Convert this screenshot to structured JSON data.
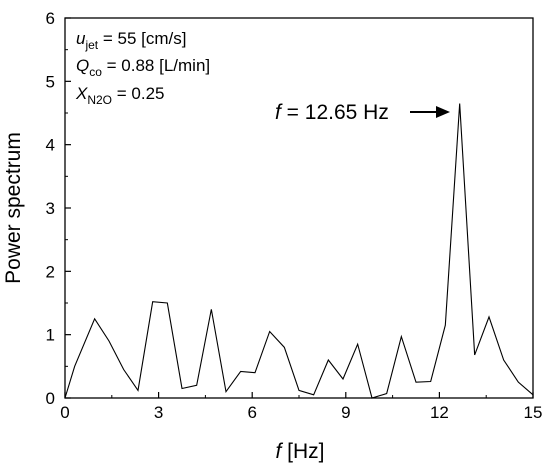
{
  "chart_data": {
    "type": "line",
    "xlabel_var": "f",
    "xlabel_unit": " [Hz]",
    "ylabel": "Power spectrum",
    "xlim": [
      0,
      15
    ],
    "ylim": [
      0,
      6
    ],
    "xticks": [
      0,
      3,
      6,
      9,
      12,
      15
    ],
    "yticks": [
      0,
      1,
      2,
      3,
      4,
      5,
      6
    ],
    "grid": false,
    "line_color": "#000000",
    "series": [
      {
        "x": [
          0,
          0.31,
          0.95,
          1.41,
          1.88,
          2.34,
          2.81,
          3.28,
          3.75,
          4.22,
          4.69,
          5.16,
          5.63,
          6.09,
          6.56,
          7.03,
          7.5,
          7.97,
          8.44,
          8.91,
          9.38,
          9.84,
          10.31,
          10.78,
          11.25,
          11.72,
          12.19,
          12.65,
          13.13,
          13.59,
          14.06,
          14.53,
          15.0
        ],
        "y": [
          0.0,
          0.5,
          1.25,
          0.9,
          0.45,
          0.12,
          1.52,
          1.5,
          0.15,
          0.2,
          1.4,
          0.1,
          0.42,
          0.4,
          1.05,
          0.8,
          0.12,
          0.05,
          0.6,
          0.3,
          0.85,
          0.0,
          0.07,
          0.97,
          0.25,
          0.26,
          1.15,
          4.65,
          0.68,
          1.28,
          0.6,
          0.25,
          0.05
        ]
      }
    ],
    "annotations": {
      "ujet": {
        "var": "u",
        "sub": "jet",
        "rest": " = 55 [cm/s]"
      },
      "qco": {
        "var": "Q",
        "sub": "co",
        "rest": " = 0.88 [L/min]"
      },
      "xn2o": {
        "var": "X",
        "sub": "N2O",
        "rest": " = 0.25"
      },
      "peak": {
        "var": "f",
        "rest": " = 12.65 Hz",
        "x": 12.65,
        "y": 4.65
      }
    }
  }
}
